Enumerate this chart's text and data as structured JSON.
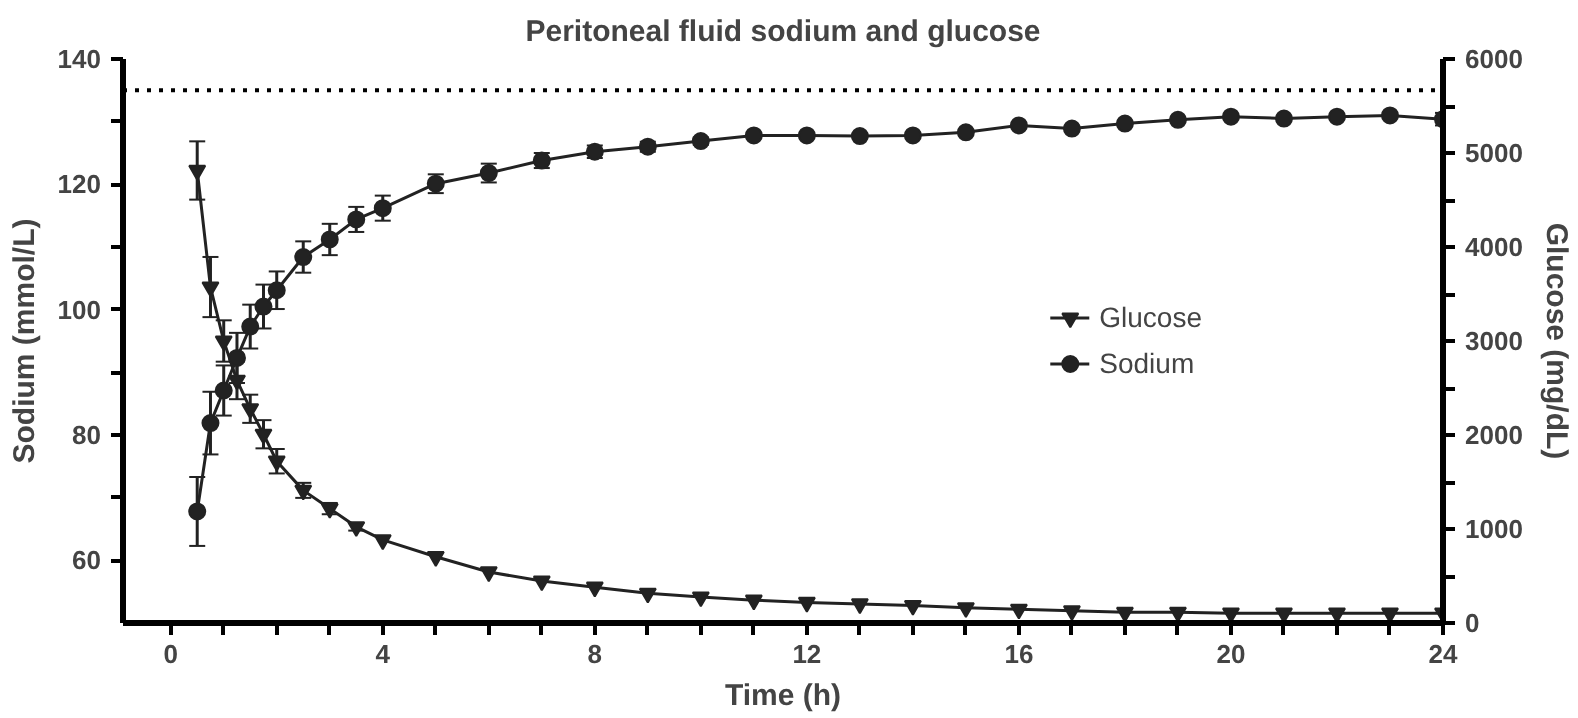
{
  "chart_data": {
    "type": "line",
    "title": "Peritoneal fluid sodium and glucose",
    "xlabel": "Time (h)",
    "ylabel": "Sodium (mmol/L)",
    "y2label": "Glucose (mg/dL)",
    "x": [
      0.5,
      0.75,
      1,
      1.25,
      1.5,
      1.75,
      2,
      2.5,
      3,
      3.5,
      4,
      5,
      6,
      7,
      8,
      9,
      10,
      11,
      12,
      13,
      14,
      15,
      16,
      17,
      18,
      19,
      20,
      21,
      22,
      23,
      24
    ],
    "series": [
      {
        "name": "Glucose",
        "color": "#222222",
        "axis": "y2",
        "marker": "triangle",
        "values": [
          4814,
          3574,
          3000,
          2581,
          2279,
          2008,
          1721,
          1411,
          1217,
          1023,
          884,
          705,
          543,
          446,
          381,
          316,
          276,
          243,
          219,
          203,
          186,
          162,
          146,
          130,
          114,
          114,
          105,
          105,
          105,
          105,
          105
        ],
        "errors": [
          310,
          320,
          220,
          200,
          150,
          150,
          130,
          80,
          60,
          40,
          null,
          null,
          null,
          null,
          null,
          null,
          null,
          null,
          null,
          null,
          null,
          null,
          null,
          null,
          null,
          null,
          null,
          null,
          null,
          null,
          null
        ]
      },
      {
        "name": "Sodium",
        "color": "#222222",
        "marker": "circle",
        "values": [
          67.8,
          81.9,
          87.1,
          92.3,
          97.3,
          100.5,
          103.1,
          108.4,
          111.2,
          114.4,
          116.2,
          120.1,
          121.8,
          123.8,
          125.2,
          126.0,
          126.9,
          127.8,
          127.8,
          127.7,
          127.8,
          128.3,
          129.4,
          128.9,
          129.7,
          130.3,
          130.8,
          130.5,
          130.8,
          131.0,
          130.4
        ],
        "errors": [
          5.5,
          5,
          4,
          4,
          3.5,
          3.5,
          3,
          2.5,
          2.5,
          2,
          2,
          1.5,
          1.5,
          1.2,
          1,
          0.8,
          0.6,
          null,
          null,
          null,
          null,
          null,
          null,
          null,
          null,
          null,
          null,
          null,
          null,
          null,
          1
        ]
      }
    ],
    "xlim": [
      -0.9,
      24
    ],
    "ylim": [
      50,
      140
    ],
    "y2lim": [
      0,
      6000
    ],
    "xticks": [
      0,
      {
        "value": 1,
        "label": null
      },
      {
        "value": 2,
        "label": null
      },
      {
        "value": 3,
        "label": null
      },
      4,
      {
        "value": 5,
        "label": null
      },
      {
        "value": 6,
        "label": null
      },
      {
        "value": 7,
        "label": null
      },
      8,
      {
        "value": 9,
        "label": null
      },
      {
        "value": 10,
        "label": null
      },
      {
        "value": 11,
        "label": null
      },
      12,
      {
        "value": 13,
        "label": null
      },
      {
        "value": 14,
        "label": null
      },
      {
        "value": 15,
        "label": null
      },
      16,
      {
        "value": 17,
        "label": null
      },
      {
        "value": 18,
        "label": null
      },
      {
        "value": 19,
        "label": null
      },
      20,
      {
        "value": 21,
        "label": null
      },
      {
        "value": 22,
        "label": null
      },
      {
        "value": 23,
        "label": null
      },
      24
    ],
    "yticks": [
      60,
      {
        "value": 70,
        "label": null
      },
      80,
      {
        "value": 90,
        "label": null
      },
      100,
      {
        "value": 110,
        "label": null
      },
      120,
      {
        "value": 130,
        "label": null
      },
      140
    ],
    "y2ticks": [
      0,
      {
        "value": 500,
        "label": null
      },
      1000,
      {
        "value": 1500,
        "label": null
      },
      2000,
      {
        "value": 2500,
        "label": null
      },
      3000,
      {
        "value": 3500,
        "label": null
      },
      4000,
      {
        "value": 4500,
        "label": null
      },
      5000,
      {
        "value": 5500,
        "label": null
      },
      6000
    ],
    "ref_lines": [
      {
        "axis": "y",
        "value": 135,
        "color": "#000000",
        "line_style": "dotted"
      }
    ],
    "grid": false,
    "legend": "right"
  }
}
